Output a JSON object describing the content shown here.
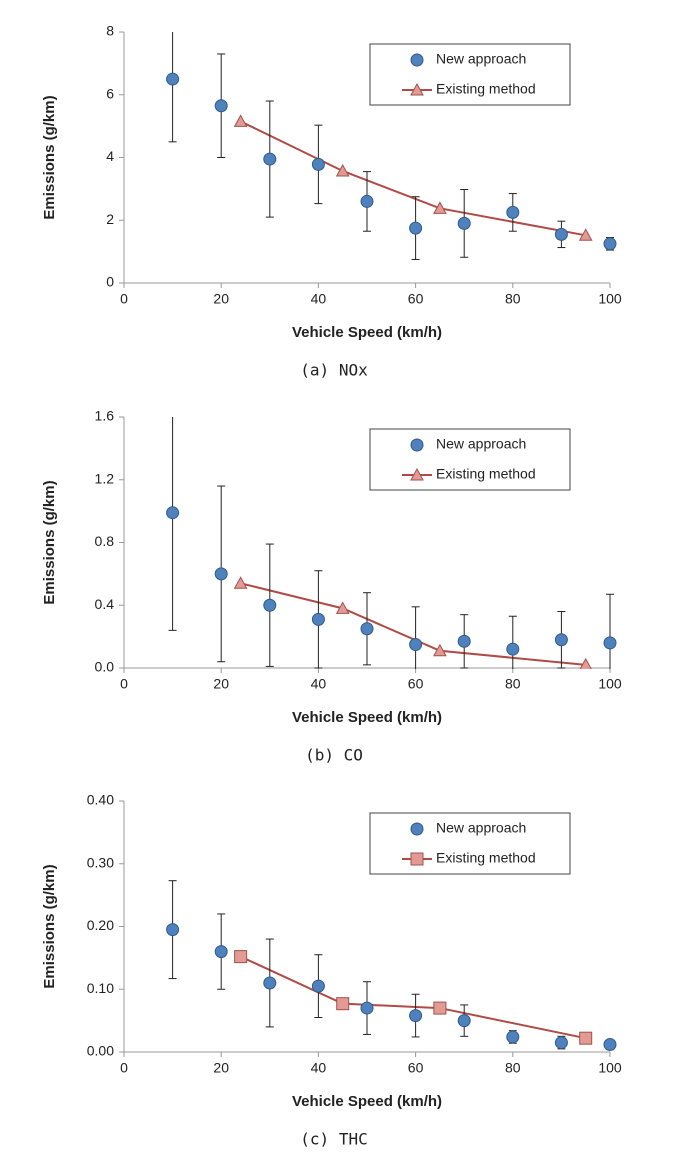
{
  "chart_data": [
    {
      "type": "scatter",
      "caption": "(a) NOx",
      "xlabel": "Vehicle Speed (km/h)",
      "ylabel": "Emissions (g/km)",
      "xlim": [
        0,
        100
      ],
      "xticks": [
        0,
        20,
        40,
        60,
        80,
        100
      ],
      "ylim": [
        0,
        8
      ],
      "yticks": [
        0,
        2,
        4,
        6,
        8
      ],
      "legend": "upper right",
      "series": [
        {
          "name": "New approach",
          "color": "#4f81bd",
          "marker": "circle",
          "x": [
            10,
            20,
            30,
            40,
            50,
            60,
            70,
            80,
            90,
            100
          ],
          "values": [
            6.5,
            5.65,
            3.95,
            3.78,
            2.6,
            1.75,
            1.9,
            2.25,
            1.55,
            1.25
          ],
          "errors": [
            2,
            1.65,
            1.85,
            1.25,
            0.95,
            1.0,
            1.08,
            0.6,
            0.42,
            0.2
          ]
        },
        {
          "name": "Existing method",
          "color": "#b04a45",
          "marker_color": "#e39a94",
          "marker": "triangle",
          "x": [
            24,
            45,
            65,
            95
          ],
          "values": [
            5.15,
            3.57,
            2.38,
            1.52
          ]
        }
      ]
    },
    {
      "type": "scatter",
      "caption": "(b) CO",
      "xlabel": "Vehicle Speed (km/h)",
      "ylabel": "Emissions (g/km)",
      "xlim": [
        0,
        100
      ],
      "xticks": [
        0,
        20,
        40,
        60,
        80,
        100
      ],
      "ylim": [
        0,
        1.6
      ],
      "yticks": [
        {
          "value": 0,
          "label": "0.0"
        },
        0.4,
        0.8,
        1.2,
        1.6
      ],
      "legend": "upper right",
      "series": [
        {
          "name": "New approach",
          "color": "#4f81bd",
          "marker": "circle",
          "x": [
            10,
            20,
            30,
            40,
            50,
            60,
            70,
            80,
            90,
            100
          ],
          "values": [
            0.99,
            0.6,
            0.4,
            0.31,
            0.25,
            0.15,
            0.17,
            0.12,
            0.18,
            0.16
          ],
          "errors": [
            0.75,
            0.56,
            0.39,
            0.31,
            0.23,
            0.24,
            0.17,
            0.21,
            0.18,
            0.31
          ]
        },
        {
          "name": "Existing method",
          "color": "#b04a45",
          "marker_color": "#e39a94",
          "marker": "triangle",
          "x": [
            24,
            45,
            65,
            95
          ],
          "values": [
            0.54,
            0.38,
            0.11,
            0.02
          ]
        }
      ]
    },
    {
      "type": "scatter",
      "caption": "(c) THC",
      "xlabel": "Vehicle Speed (km/h)",
      "ylabel": "Emissions (g/km)",
      "xlim": [
        0,
        100
      ],
      "xticks": [
        0,
        20,
        40,
        60,
        80,
        100
      ],
      "ylim": [
        0,
        0.4
      ],
      "yticks": [
        {
          "value": 0,
          "label": "0.00"
        },
        {
          "value": 0.1,
          "label": "0.10"
        },
        {
          "value": 0.2,
          "label": "0.20"
        },
        {
          "value": 0.3,
          "label": "0.30"
        },
        {
          "value": 0.4,
          "label": "0.40"
        }
      ],
      "legend": "upper right",
      "series": [
        {
          "name": "New approach",
          "color": "#4f81bd",
          "marker": "circle",
          "x": [
            10,
            20,
            30,
            40,
            50,
            60,
            70,
            80,
            90,
            100
          ],
          "values": [
            0.195,
            0.16,
            0.11,
            0.105,
            0.07,
            0.058,
            0.05,
            0.024,
            0.015,
            0.012
          ],
          "errors": [
            0.078,
            0.06,
            0.07,
            0.05,
            0.042,
            0.034,
            0.025,
            0.01,
            0.01,
            0.003
          ]
        },
        {
          "name": "Existing method",
          "color": "#b04a45",
          "marker_color": "#e39a94",
          "marker": "square",
          "x": [
            24,
            45,
            65,
            95
          ],
          "values": [
            0.152,
            0.077,
            0.07,
            0.022
          ]
        }
      ]
    }
  ]
}
